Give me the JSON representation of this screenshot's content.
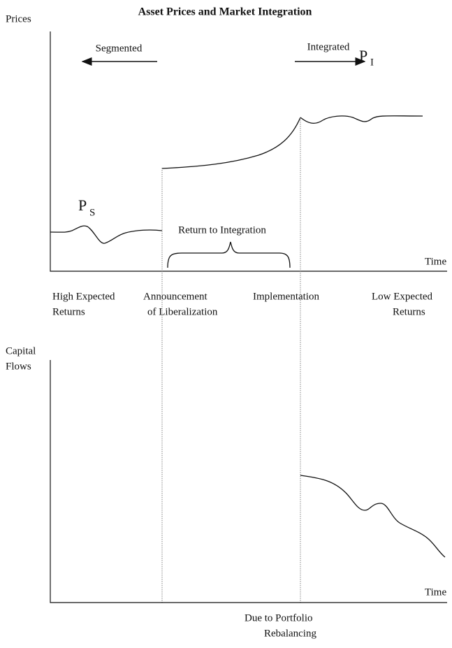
{
  "title": "Asset Prices and Market Integration",
  "top_panel": {
    "y_label": "Prices",
    "segmented": "Segmented",
    "integrated": "Integrated",
    "p_integrated": {
      "main": "P",
      "sub": "I"
    },
    "p_segmented": {
      "main": "P",
      "sub": "S"
    },
    "bracket_label": "Return to Integration",
    "x_label": "Time"
  },
  "phase_labels": [
    [
      "High Expected",
      "Returns"
    ],
    [
      "Announcement",
      "of Liberalization"
    ],
    [
      "Implementation"
    ],
    [
      "Low Expected",
      "Returns"
    ]
  ],
  "bottom_panel": {
    "y_label": [
      "Capital",
      "Flows"
    ],
    "x_label": "Time",
    "note": [
      "Due to Portfolio",
      "Rebalancing"
    ]
  }
}
